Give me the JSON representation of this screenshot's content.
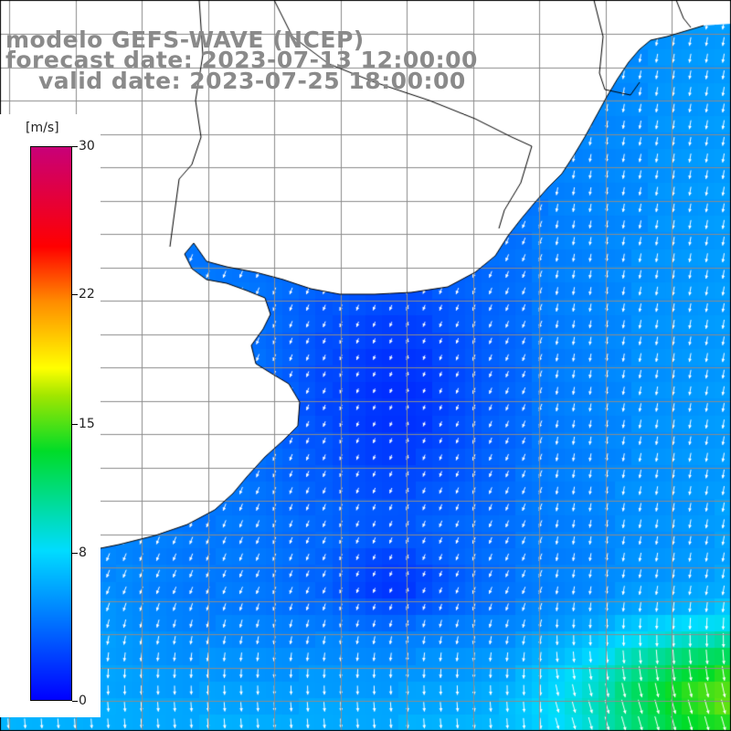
{
  "title": {
    "line1": "modelo GEFS-WAVE (NCEP)",
    "line2": "forecast date: 2023-07-13 12:00:00",
    "line3": "valid date: 2023-07-25 18:00:00"
  },
  "colorbar": {
    "unit": "[m/s]",
    "ticks": [
      {
        "label": "30",
        "value": 30
      },
      {
        "label": "22",
        "value": 22
      },
      {
        "label": "15",
        "value": 15
      },
      {
        "label": "8",
        "value": 8
      },
      {
        "label": "0",
        "value": 0
      }
    ],
    "min": 0,
    "max": 30
  },
  "colors": {
    "land": "#ffffff",
    "grid": "#8c8c8c",
    "coast": "#000000",
    "arrow": "#ffffff",
    "title_text": "#8a8a8a"
  },
  "field": {
    "variable": "wind speed",
    "dominant_range": "about 1 to 6 m/s over most of the ocean; up to about 12 m/s near the bottom-right corner"
  }
}
